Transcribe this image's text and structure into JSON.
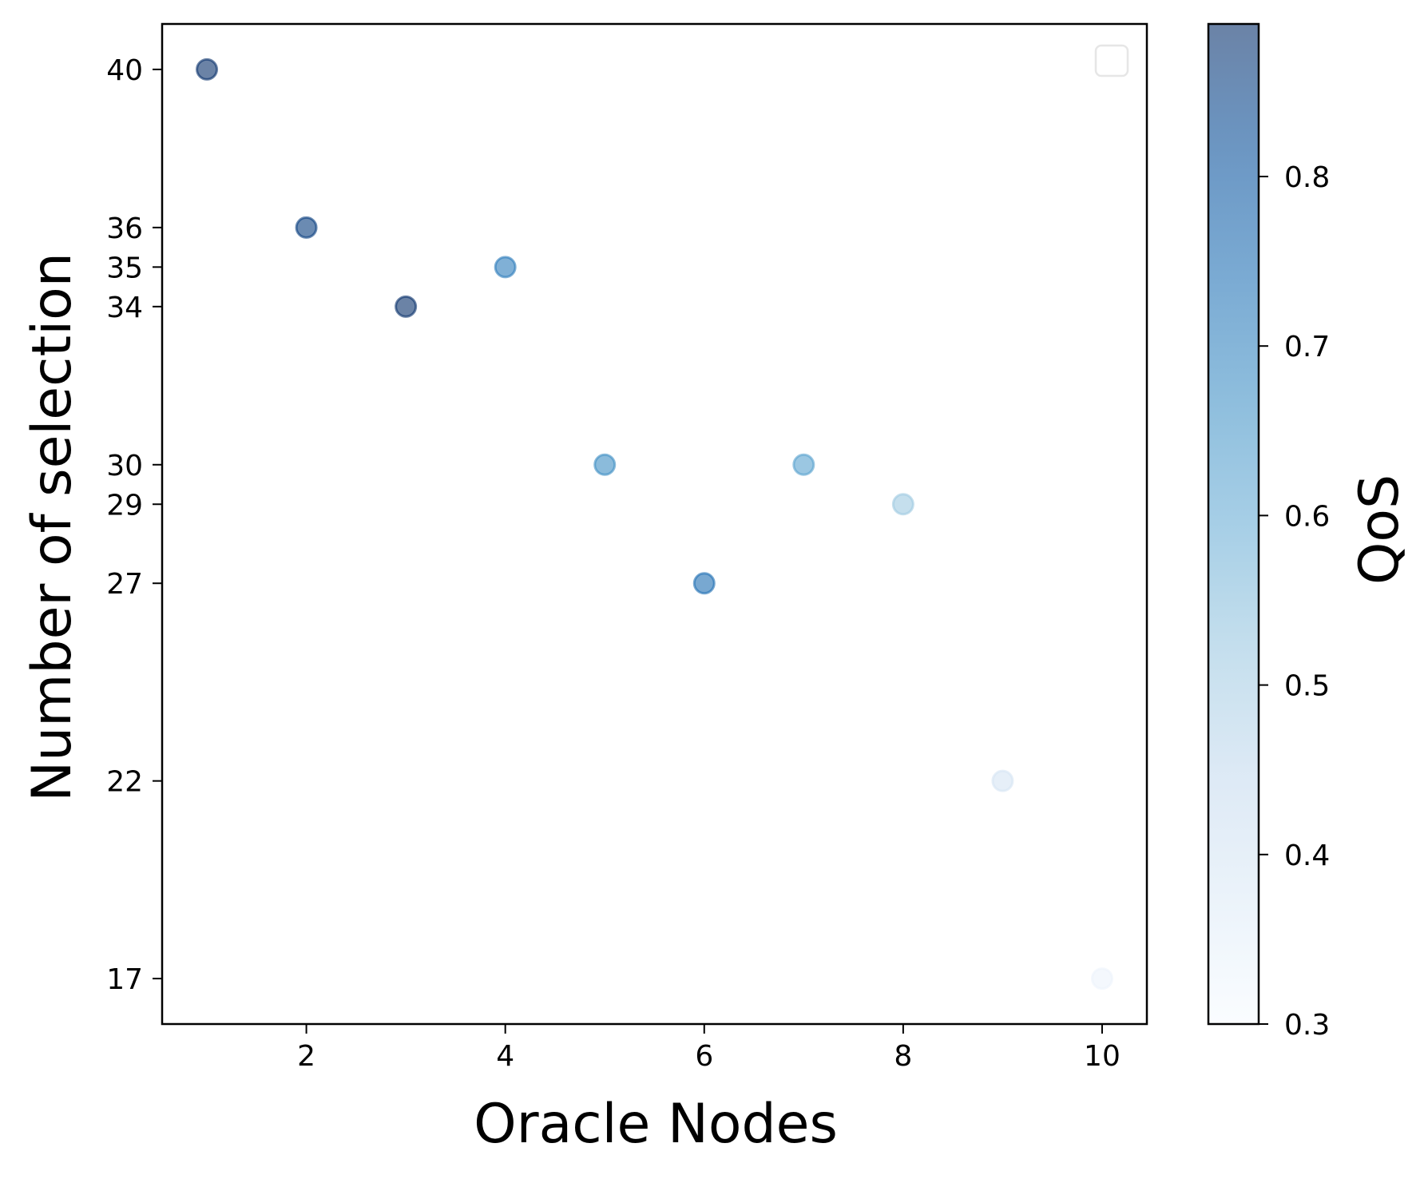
{
  "chart_data": {
    "type": "scatter",
    "title": "",
    "xlabel": "Oracle Nodes",
    "ylabel": "Number of selection",
    "xlim": [
      0.55,
      10.45
    ],
    "ylim": [
      15.85,
      41.15
    ],
    "xticks": [
      2,
      4,
      6,
      8,
      10
    ],
    "yticks": [
      17,
      22,
      27,
      29,
      30,
      34,
      35,
      36,
      40
    ],
    "legend": "top-right (empty)",
    "grid": false,
    "colorbar": {
      "label": "QoS",
      "range": [
        0.3,
        0.89
      ],
      "ticks": [
        "0.3",
        "0.4",
        "0.5",
        "0.6",
        "0.7",
        "0.8"
      ],
      "colormap": "Blues",
      "alpha": 0.6
    },
    "points": [
      {
        "x": 1,
        "y": 40,
        "qos": 0.89
      },
      {
        "x": 2,
        "y": 36,
        "qos": 0.86
      },
      {
        "x": 3,
        "y": 34,
        "qos": 0.89
      },
      {
        "x": 4,
        "y": 35,
        "qos": 0.72
      },
      {
        "x": 5,
        "y": 30,
        "qos": 0.68
      },
      {
        "x": 6,
        "y": 27,
        "qos": 0.75
      },
      {
        "x": 7,
        "y": 30,
        "qos": 0.63
      },
      {
        "x": 8,
        "y": 29,
        "qos": 0.52
      },
      {
        "x": 9,
        "y": 22,
        "qos": 0.4
      },
      {
        "x": 10,
        "y": 17,
        "qos": 0.33
      }
    ]
  }
}
